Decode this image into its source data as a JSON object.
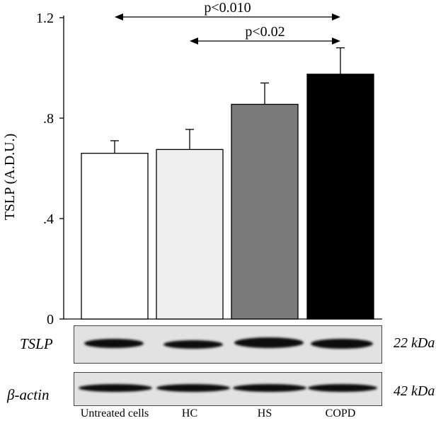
{
  "chart_data": {
    "type": "bar",
    "ylabel": "TSLP (A.D.U.)",
    "ylim": [
      0,
      1.2
    ],
    "yticks": [
      "0",
      ".4",
      ".8",
      "1.2"
    ],
    "ytick_values": [
      0,
      0.4,
      0.8,
      1.2
    ],
    "categories": [
      "Untreated cells",
      "HC",
      "HS",
      "COPD"
    ],
    "values": [
      0.66,
      0.675,
      0.855,
      0.975
    ],
    "errors": [
      0.05,
      0.08,
      0.085,
      0.105
    ],
    "bar_colors": [
      "#ffffff",
      "#efefef",
      "#7a7a7a",
      "#000000"
    ],
    "comparisons": [
      {
        "from": "Untreated cells",
        "to": "COPD",
        "label": "p<0.010"
      },
      {
        "from": "HC",
        "to": "COPD",
        "label": "p<0.02"
      }
    ]
  },
  "blot": {
    "rows": [
      {
        "label": "TSLP",
        "size": "22 kDa"
      },
      {
        "label": "β-actin",
        "size": "42 kDa"
      }
    ]
  }
}
